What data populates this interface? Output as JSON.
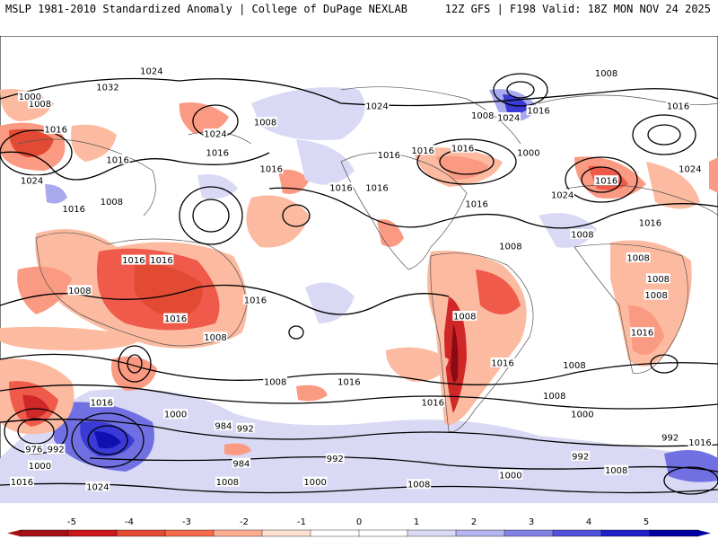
{
  "header": {
    "left_title": "MSLP 1981-2010 Standardized Anomaly | College of DuPage NEXLAB",
    "right_title": "12Z GFS | F198 Valid: 18Z MON NOV 24 2025"
  },
  "isobar_labels": [
    {
      "text": "1024",
      "lon": 76,
      "lat": 75
    },
    {
      "text": "1032",
      "lon": 54,
      "lat": 68
    },
    {
      "text": "1024",
      "lon": 108,
      "lat": 48
    },
    {
      "text": "1016",
      "lon": 136,
      "lat": 33
    },
    {
      "text": "1016",
      "lon": 171,
      "lat": 25
    },
    {
      "text": "1016",
      "lon": 109,
      "lat": 40
    },
    {
      "text": "1008",
      "lon": 133,
      "lat": 53
    },
    {
      "text": "1024",
      "lon": 189,
      "lat": 60
    },
    {
      "text": "1016",
      "lon": 195,
      "lat": 39
    },
    {
      "text": "1016",
      "lon": 59,
      "lat": 37
    },
    {
      "text": "1016",
      "lon": 81,
      "lat": -6
    },
    {
      "text": "1008",
      "lon": 56,
      "lat": 19
    },
    {
      "text": "1008",
      "lon": 40,
      "lat": -19
    },
    {
      "text": "1016",
      "lon": 37,
      "lat": 16
    },
    {
      "text": "1008",
      "lon": 20,
      "lat": 61
    },
    {
      "text": "1016",
      "lon": 28,
      "lat": 50
    },
    {
      "text": "1000",
      "lon": 15,
      "lat": 64
    },
    {
      "text": "1024",
      "lon": 16,
      "lat": 28
    },
    {
      "text": "1016",
      "lon": 67,
      "lat": -6
    },
    {
      "text": "1008",
      "lon": 108,
      "lat": -39
    },
    {
      "text": "1016",
      "lon": 175,
      "lat": -58
    },
    {
      "text": "1008",
      "lon": 138,
      "lat": -58
    },
    {
      "text": "1016",
      "lon": 88,
      "lat": -31
    },
    {
      "text": "1016",
      "lon": 128,
      "lat": -23
    },
    {
      "text": "1016",
      "lon": 51,
      "lat": -67
    },
    {
      "text": "1000",
      "lon": 88,
      "lat": -72
    },
    {
      "text": "984",
      "lon": 112,
      "lat": -77
    },
    {
      "text": "992",
      "lon": 123,
      "lat": -78
    },
    {
      "text": "984",
      "lon": 121,
      "lat": -93
    },
    {
      "text": "992",
      "lon": 28,
      "lat": -87
    },
    {
      "text": "976",
      "lon": 17,
      "lat": -87
    },
    {
      "text": "1000",
      "lon": 20,
      "lat": -94
    },
    {
      "text": "1024",
      "lon": 49,
      "lat": -103
    },
    {
      "text": "1016",
      "lon": 11,
      "lat": -101
    },
    {
      "text": "1016",
      "lon": 217,
      "lat": -67
    },
    {
      "text": "1016",
      "lon": 252,
      "lat": -50
    },
    {
      "text": "1008",
      "lon": 278,
      "lat": -64
    },
    {
      "text": "1008",
      "lon": 288,
      "lat": -51
    },
    {
      "text": "1000",
      "lon": 292,
      "lat": -72
    },
    {
      "text": "992",
      "lon": 336,
      "lat": -82
    },
    {
      "text": "992",
      "lon": 291,
      "lat": -90
    },
    {
      "text": "992",
      "lon": 168,
      "lat": -91
    },
    {
      "text": "1008",
      "lon": 210,
      "lat": -102
    },
    {
      "text": "1000",
      "lon": 158,
      "lat": -101
    },
    {
      "text": "1000",
      "lon": 256,
      "lat": -98
    },
    {
      "text": "1008",
      "lon": 309,
      "lat": -96
    },
    {
      "text": "1016",
      "lon": 351,
      "lat": -84
    },
    {
      "text": "1008",
      "lon": 114,
      "lat": -101
    },
    {
      "text": "1016",
      "lon": 322,
      "lat": -37
    },
    {
      "text": "1008",
      "lon": 256,
      "lat": 0
    },
    {
      "text": "1008",
      "lon": 233,
      "lat": -30
    },
    {
      "text": "1008",
      "lon": 320,
      "lat": -5
    },
    {
      "text": "1008",
      "lon": 329,
      "lat": -21
    },
    {
      "text": "1008",
      "lon": 292,
      "lat": 5
    },
    {
      "text": "1008",
      "lon": 330,
      "lat": -14
    },
    {
      "text": "1024",
      "lon": 282,
      "lat": 22
    },
    {
      "text": "1016",
      "lon": 304,
      "lat": 28
    },
    {
      "text": "1016",
      "lon": 326,
      "lat": 10
    },
    {
      "text": "1024",
      "lon": 346,
      "lat": 33
    },
    {
      "text": "1016",
      "lon": 340,
      "lat": 60
    },
    {
      "text": "1016",
      "lon": 270,
      "lat": 58
    },
    {
      "text": "1000",
      "lon": 265,
      "lat": 40
    },
    {
      "text": "1008",
      "lon": 242,
      "lat": 56
    },
    {
      "text": "1024",
      "lon": 255,
      "lat": 55
    },
    {
      "text": "1008",
      "lon": 304,
      "lat": 74
    },
    {
      "text": "1016",
      "lon": 232,
      "lat": 42
    },
    {
      "text": "1016",
      "lon": 212,
      "lat": 41
    },
    {
      "text": "1016",
      "lon": 239,
      "lat": 18
    },
    {
      "text": "1016",
      "lon": 189,
      "lat": 25
    }
  ],
  "legend": {
    "ticks": [
      "-5",
      "-4",
      "-3",
      "-2",
      "-1",
      "0",
      "1",
      "2",
      "3",
      "4",
      "5"
    ],
    "colors": [
      "#a50f15",
      "#cb181d",
      "#e34a33",
      "#fb6a4a",
      "#fcae91",
      "#fee0d2",
      "#ffffff",
      "#ffffff",
      "#dadaf5",
      "#b4b4ee",
      "#8282e6",
      "#5050dc",
      "#2020c8",
      "#0000a0"
    ]
  },
  "anomaly_colors": {
    "neg1": "#fcbba1",
    "neg2": "#fb9a82",
    "neg3": "#ef5a4a",
    "neg4": "#d02828",
    "neg5": "#8b0a14",
    "pos1": "#d9d9f5",
    "pos2": "#a9a9ee",
    "pos3": "#7070e2",
    "pos4": "#3a3ad6",
    "pos5": "#1010b0",
    "land": "#ffffff",
    "coast": "#555555",
    "isobar": "#000000"
  }
}
